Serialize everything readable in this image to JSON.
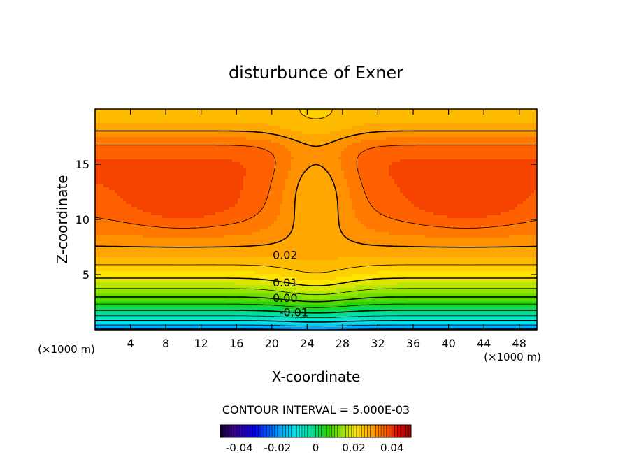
{
  "chart_data": {
    "type": "heatmap",
    "title": "disturbunce of Exner",
    "xlabel": "X-coordinate",
    "ylabel": "Z-coordinate",
    "x_unit_left": "(×1000 m)",
    "x_unit_right": "(×1000 m)",
    "xlim": [
      0,
      50
    ],
    "ylim": [
      0,
      20
    ],
    "x_ticks": [
      4,
      8,
      12,
      16,
      20,
      24,
      28,
      32,
      36,
      40,
      44,
      48
    ],
    "x_tick_labels": [
      "4",
      "8",
      "12",
      "16",
      "20",
      "24",
      "28",
      "32",
      "36",
      "40",
      "44",
      "48"
    ],
    "y_ticks": [
      5,
      10,
      15
    ],
    "y_tick_labels": [
      "5",
      "10",
      "15"
    ],
    "contour_interval_text": "CONTOUR INTERVAL = 5.000E-03",
    "contour_interval": 0.005,
    "contour_labels": [
      {
        "text": "0.02",
        "x": 21.5,
        "y": 6.8
      },
      {
        "text": "0.01",
        "x": 21.5,
        "y": 4.3
      },
      {
        "text": "0.00",
        "x": 21.5,
        "y": 2.9
      },
      {
        "text": "-0.01",
        "x": 22.5,
        "y": 1.6
      }
    ],
    "field": {
      "min_near_bottom": -0.02,
      "max_interior": 0.041,
      "max_location_x": [
        10,
        42
      ],
      "max_location_z": 11
    },
    "colorbar": {
      "range": [
        -0.05,
        0.05
      ],
      "tick_values": [
        -0.04,
        -0.02,
        0,
        0.02,
        0.04
      ],
      "tick_labels": [
        "-0.04",
        "-0.02",
        "0",
        "0.02",
        "0.04"
      ]
    }
  }
}
